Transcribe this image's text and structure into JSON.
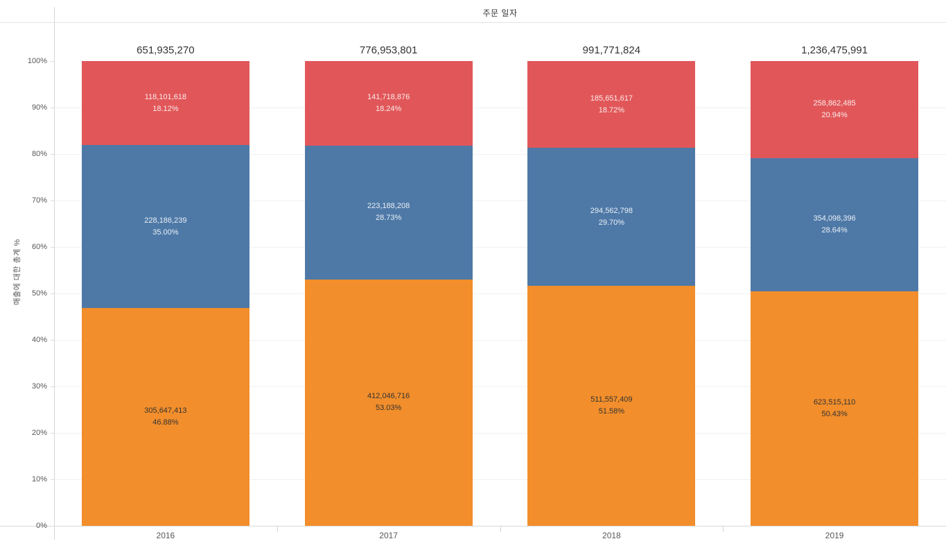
{
  "header": {
    "title": "주문 일자"
  },
  "axes": {
    "y_title": "매출에 대한 총계 %"
  },
  "chart_data": {
    "type": "bar",
    "subtype": "stacked-100-percent-column",
    "title": "주문 일자",
    "xlabel": "",
    "ylabel": "매출에 대한 총계 %",
    "ylim": [
      0,
      100
    ],
    "grid": true,
    "legend_position": "none",
    "y_tick_labels": [
      "0%",
      "10%",
      "20%",
      "30%",
      "40%",
      "50%",
      "60%",
      "70%",
      "80%",
      "90%",
      "100%"
    ],
    "categories": [
      "2016",
      "2017",
      "2018",
      "2019"
    ],
    "bar_totals": [
      651935270,
      776953801,
      991771824,
      1236475991
    ],
    "bar_total_labels": [
      "651,935,270",
      "776,953,801",
      "991,771,824",
      "1,236,475,991"
    ],
    "series": [
      {
        "stack_position": "top",
        "color": "#E15759",
        "label_color": "rgba(255,255,255,0.88)",
        "values": [
          118101618,
          141718876,
          185651617,
          258862485
        ],
        "value_labels": [
          "118,101,618",
          "141,718,876",
          "185,651,617",
          "258,862,485"
        ],
        "percents": [
          18.12,
          18.24,
          18.72,
          20.94
        ],
        "percent_labels": [
          "18.12%",
          "18.24%",
          "18.72%",
          "20.94%"
        ]
      },
      {
        "stack_position": "middle",
        "color": "#4E79A7",
        "label_color": "rgba(255,255,255,0.88)",
        "values": [
          228186239,
          223188208,
          294562798,
          354098396
        ],
        "value_labels": [
          "228,186,239",
          "223,188,208",
          "294,562,798",
          "354,098,396"
        ],
        "percents": [
          35.0,
          28.73,
          29.7,
          28.64
        ],
        "percent_labels": [
          "35.00%",
          "28.73%",
          "29.70%",
          "28.64%"
        ]
      },
      {
        "stack_position": "bottom",
        "color": "#F28E2B",
        "label_color": "#333333",
        "values": [
          305647413,
          412046716,
          511557409,
          623515110
        ],
        "value_labels": [
          "305,647,413",
          "412,046,716",
          "511,557,409",
          "623,515,110"
        ],
        "percents": [
          46.88,
          53.03,
          51.58,
          50.43
        ],
        "percent_labels": [
          "46.88%",
          "53.03%",
          "51.58%",
          "50.43%"
        ]
      }
    ]
  },
  "style": {
    "gridline_color": "#f0f0f0",
    "axis_line_color": "#d7d7d7",
    "tick_label_color": "#575757",
    "total_label_color": "#333333"
  }
}
